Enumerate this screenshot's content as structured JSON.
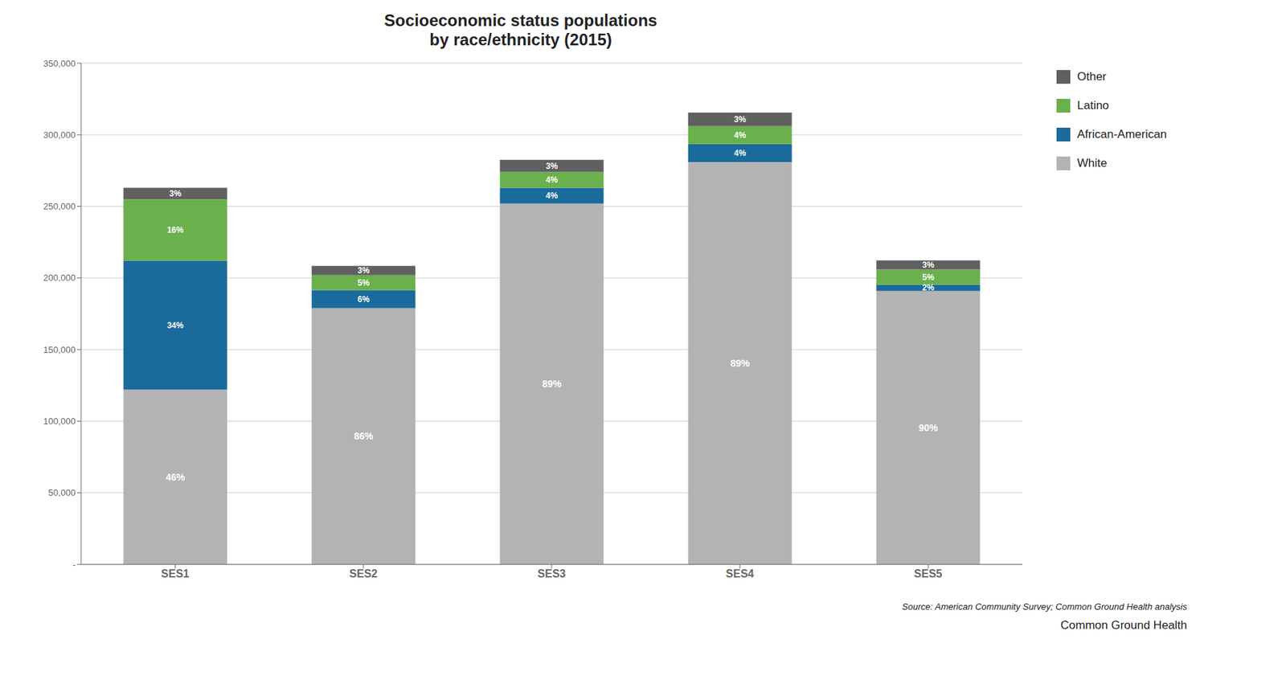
{
  "chart_data": {
    "type": "bar",
    "stacked": true,
    "grid": true,
    "legend": "right",
    "title": "Socioeconomic status populations",
    "subtitle": "by race/ethnicity (2015)",
    "categories": [
      "SES1",
      "SES2",
      "SES3",
      "SES4",
      "SES5"
    ],
    "series": [
      {
        "name": "White",
        "color": "#b3b3b3",
        "values": [
          122000,
          179000,
          252000,
          281000,
          191000
        ],
        "share_labels": [
          "46%",
          "86%",
          "89%",
          "89%",
          "90%"
        ]
      },
      {
        "name": "African-American",
        "color": "#1b6a9c",
        "values": [
          90000,
          12500,
          11000,
          12500,
          4300
        ],
        "share_labels": [
          "34%",
          "6%",
          "4%",
          "4%",
          "2%"
        ]
      },
      {
        "name": "Latino",
        "color": "#6ab04c",
        "values": [
          43000,
          10500,
          11000,
          12500,
          10600
        ],
        "share_labels": [
          "16%",
          "5%",
          "4%",
          "4%",
          "5%"
        ]
      },
      {
        "name": "Other",
        "color": "#606060",
        "values": [
          8000,
          6500,
          8500,
          9500,
          6400
        ],
        "share_labels": [
          "3%",
          "3%",
          "3%",
          "3%",
          "3%"
        ]
      }
    ],
    "ylim": [
      0,
      350000
    ],
    "yticks": [
      {
        "value": 0,
        "label": "-"
      },
      {
        "value": 50000,
        "label": "50,000"
      },
      {
        "value": 100000,
        "label": "100,000"
      },
      {
        "value": 150000,
        "label": "150,000"
      },
      {
        "value": 200000,
        "label": "200,000"
      },
      {
        "value": 250000,
        "label": "250,000"
      },
      {
        "value": 300000,
        "label": "300,000"
      },
      {
        "value": 350000,
        "label": "350,000"
      }
    ],
    "annotations": [
      "Source: American Community Survey; Common Ground Health analysis",
      "Common Ground",
      "Health"
    ]
  }
}
